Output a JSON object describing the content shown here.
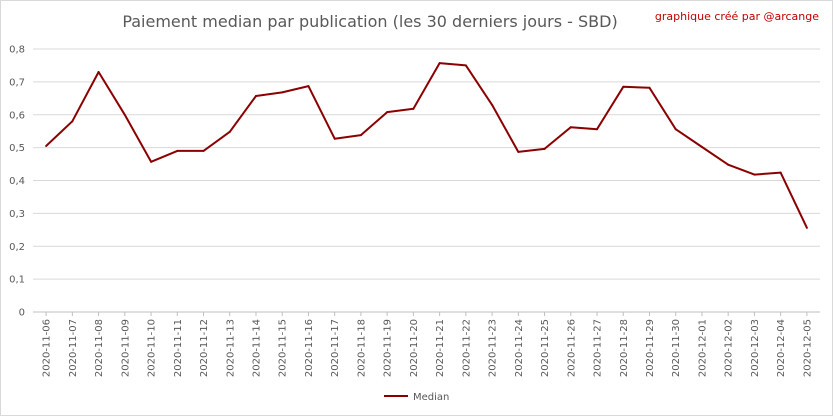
{
  "chart_data": {
    "type": "line",
    "title": "Paiement median par publication (les 30 derniers jours - SBD)",
    "annotation": "graphique créé par @arcange",
    "xlabel": "",
    "ylabel": "",
    "ylim": [
      0,
      0.8
    ],
    "yticks": [
      "0",
      "0,1",
      "0,2",
      "0,3",
      "0,4",
      "0,5",
      "0,6",
      "0,7",
      "0,8"
    ],
    "grid": "horizontal",
    "legend_position": "bottom",
    "categories": [
      "2020-11-06",
      "2020-11-07",
      "2020-11-08",
      "2020-11-09",
      "2020-11-10",
      "2020-11-11",
      "2020-11-12",
      "2020-11-13",
      "2020-11-14",
      "2020-11-15",
      "2020-11-16",
      "2020-11-17",
      "2020-11-18",
      "2020-11-19",
      "2020-11-20",
      "2020-11-21",
      "2020-11-22",
      "2020-11-23",
      "2020-11-24",
      "2020-11-25",
      "2020-11-26",
      "2020-11-27",
      "2020-11-28",
      "2020-11-29",
      "2020-11-30",
      "2020-12-01",
      "2020-12-02",
      "2020-12-03",
      "2020-12-04",
      "2020-12-05"
    ],
    "series": [
      {
        "name": "Median",
        "color": "#8b0000",
        "values": [
          0.505,
          0.58,
          0.73,
          0.6,
          0.457,
          0.49,
          0.49,
          0.548,
          0.657,
          0.668,
          0.687,
          0.527,
          0.538,
          0.608,
          0.618,
          0.757,
          0.75,
          0.63,
          0.487,
          0.496,
          0.562,
          0.556,
          0.685,
          0.682,
          0.556,
          0.502,
          0.448,
          0.418,
          0.424,
          0.256
        ]
      }
    ]
  }
}
